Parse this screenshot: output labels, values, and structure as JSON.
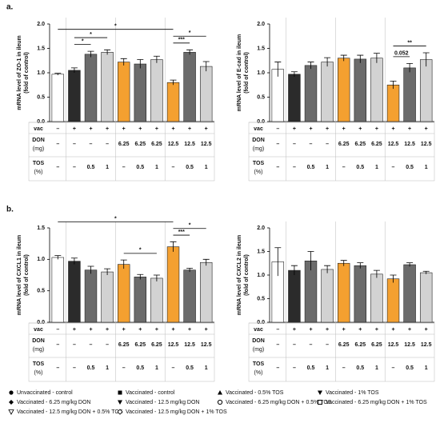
{
  "panels": [
    "a.",
    "b."
  ],
  "table": {
    "rows": [
      {
        "label": "vac",
        "cells": [
          "–",
          "+",
          "+",
          "+",
          "+",
          "+",
          "+",
          "+",
          "+",
          "+"
        ]
      },
      {
        "label": "DON",
        "unit": "(mg)",
        "cells": [
          "–",
          "–",
          "–",
          "–",
          "6.25",
          "6.25",
          "6.25",
          "12.5",
          "12.5",
          "12.5"
        ]
      },
      {
        "label": "TOS",
        "unit": "(%)",
        "cells": [
          "–",
          "–",
          "0.5",
          "1",
          "–",
          "0.5",
          "1",
          "–",
          "0.5",
          "1"
        ]
      }
    ]
  },
  "legend": [
    {
      "marker": "circle",
      "text": "Unvaccinated - control"
    },
    {
      "marker": "square",
      "text": "Vaccinated - control"
    },
    {
      "marker": "triangle",
      "text": "Vaccinated - 0.5% TOS"
    },
    {
      "marker": "triangle-down",
      "text": "Vaccinated - 1% TOS"
    },
    {
      "marker": "diamond",
      "text": "Vaccinated - 6.25 mg/kg DON"
    },
    {
      "marker": "triangle-down",
      "text": "Vaccinated - 12.5 mg/kg DON"
    },
    {
      "marker": "circle-open",
      "text": "Vaccinated - 6.25 mg/kg DON + 0.5% TOS"
    },
    {
      "marker": "square-open",
      "text": "Vaccinated - 6.25 mg/kg DON + 1% TOS"
    },
    {
      "marker": "triangle-down-open",
      "text": "Vaccinated - 12.5 mg/kg DON + 0.5% TOS"
    },
    {
      "marker": "diamond-open",
      "text": "Vaccinated - 12.5 mg/kg DON + 1% TOS"
    }
  ],
  "chart_data": [
    {
      "type": "bar",
      "ylabel": "mRNA level of ZO-1 in ileum",
      "ylabel2": "(fold of control)",
      "values": [
        0.97,
        1.05,
        1.38,
        1.42,
        1.22,
        1.18,
        1.27,
        0.8,
        1.42,
        1.13
      ],
      "errors": [
        0.02,
        0.05,
        0.06,
        0.05,
        0.07,
        0.09,
        0.07,
        0.05,
        0.05,
        0.1
      ],
      "colors": [
        "#ffffff",
        "#2b2b2b",
        "#6b6b6b",
        "#d2d2d2",
        "#f4a030",
        "#6b6b6b",
        "#d2d2d2",
        "#f4a030",
        "#6b6b6b",
        "#d2d2d2"
      ],
      "ylim": [
        0,
        2
      ],
      "yticks": [
        {
          "value": 0,
          "label": "0.0"
        },
        0.5,
        {
          "value": 1,
          "label": "1.0"
        },
        1.5,
        {
          "value": 2,
          "label": "2.0"
        }
      ],
      "annotations": [
        {
          "text": "*",
          "from": 1,
          "to": 2
        },
        {
          "text": "***",
          "from": 7,
          "to": 8
        },
        {
          "text": "*",
          "from": 1,
          "to": 3
        },
        {
          "text": "*",
          "from": 7,
          "to": 9
        },
        {
          "text": "*",
          "from": 0,
          "to": 7
        }
      ]
    },
    {
      "type": "bar",
      "ylabel": "mRNA level of E-cad in ileum",
      "ylabel2": "(fold of control)",
      "values": [
        1.07,
        0.97,
        1.15,
        1.22,
        1.3,
        1.28,
        1.3,
        0.75,
        1.1,
        1.27
      ],
      "errors": [
        0.15,
        0.05,
        0.07,
        0.09,
        0.06,
        0.08,
        0.1,
        0.08,
        0.09,
        0.14
      ],
      "colors": [
        "#ffffff",
        "#2b2b2b",
        "#6b6b6b",
        "#d2d2d2",
        "#f4a030",
        "#6b6b6b",
        "#d2d2d2",
        "#f4a030",
        "#6b6b6b",
        "#d2d2d2"
      ],
      "ylim": [
        0,
        2
      ],
      "yticks": [
        {
          "value": 0,
          "label": "0.0"
        },
        0.5,
        {
          "value": 1,
          "label": "1.0"
        },
        1.5,
        {
          "value": 2,
          "label": "2.0"
        }
      ],
      "annotations": [
        {
          "text": "0.052",
          "from": 7,
          "to": 8
        },
        {
          "text": "**",
          "from": 7,
          "to": 9
        }
      ]
    },
    {
      "type": "bar",
      "ylabel": "mRNA level of CXCL1 in ileum",
      "ylabel2": "(fold of control)",
      "values": [
        1.03,
        0.97,
        0.83,
        0.8,
        0.92,
        0.72,
        0.7,
        1.2,
        0.83,
        0.95
      ],
      "errors": [
        0.03,
        0.05,
        0.06,
        0.05,
        0.07,
        0.04,
        0.05,
        0.08,
        0.03,
        0.05
      ],
      "colors": [
        "#ffffff",
        "#2b2b2b",
        "#6b6b6b",
        "#d2d2d2",
        "#f4a030",
        "#6b6b6b",
        "#d2d2d2",
        "#f4a030",
        "#6b6b6b",
        "#d2d2d2"
      ],
      "ylim": [
        0,
        1.5
      ],
      "yticks": [
        {
          "value": 0,
          "label": "0.0"
        },
        0.5,
        {
          "value": 1,
          "label": "1.0"
        },
        1.5
      ],
      "annotations": [
        {
          "text": "*",
          "from": 4,
          "to": 6
        },
        {
          "text": "***",
          "from": 7,
          "to": 8
        },
        {
          "text": "*",
          "from": 7,
          "to": 9
        },
        {
          "text": "*",
          "from": 0,
          "to": 7
        }
      ]
    },
    {
      "type": "bar",
      "ylabel": "mRNA level of CXCL2 in ileum",
      "ylabel2": "(fold of control)",
      "values": [
        1.28,
        1.1,
        1.3,
        1.12,
        1.25,
        1.2,
        1.02,
        0.92,
        1.22,
        1.05
      ],
      "errors": [
        0.3,
        0.1,
        0.2,
        0.08,
        0.06,
        0.06,
        0.08,
        0.08,
        0.04,
        0.03
      ],
      "colors": [
        "#ffffff",
        "#2b2b2b",
        "#6b6b6b",
        "#d2d2d2",
        "#f4a030",
        "#6b6b6b",
        "#d2d2d2",
        "#f4a030",
        "#6b6b6b",
        "#d2d2d2"
      ],
      "ylim": [
        0,
        2
      ],
      "yticks": [
        {
          "value": 0,
          "label": "0.0"
        },
        0.5,
        {
          "value": 1,
          "label": "1.0"
        },
        1.5,
        {
          "value": 2,
          "label": "2.0"
        }
      ],
      "annotations": []
    }
  ]
}
